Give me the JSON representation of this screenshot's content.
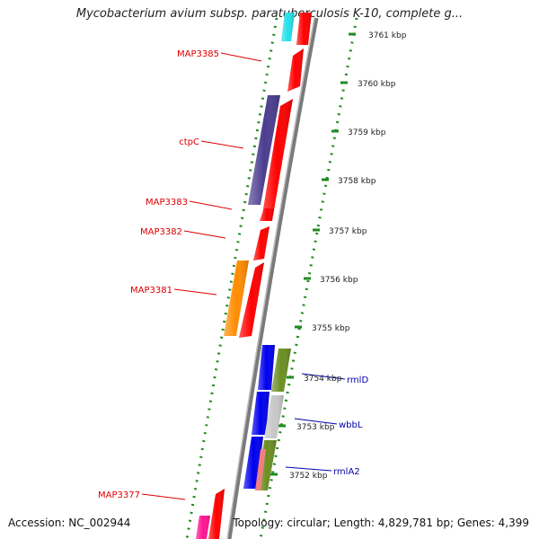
{
  "title": "Mycobacterium avium subsp. paratuberculosis K-10, complete g...",
  "footer": {
    "accession": "Accession: NC_002944",
    "info": "Topology: circular; Length: 4,829,781 bp; Genes: 4,399"
  },
  "colors": {
    "ruler": "#228B22",
    "red_label": "#dd0000",
    "blue_label": "#0000aa",
    "backbone": "#808080"
  },
  "ticks": [
    {
      "label": "3761 kbp"
    },
    {
      "label": "3760 kbp"
    },
    {
      "label": "3759 kbp"
    },
    {
      "label": "3758 kbp"
    },
    {
      "label": "3757 kbp"
    },
    {
      "label": "3756 kbp"
    },
    {
      "label": "3755 kbp"
    },
    {
      "label": "3754 kbp"
    },
    {
      "label": "3753 kbp"
    },
    {
      "label": "3752 kbp"
    }
  ],
  "left_labels": [
    {
      "label": "MAP3385"
    },
    {
      "label": "ctpC"
    },
    {
      "label": "MAP3383"
    },
    {
      "label": "MAP3382"
    },
    {
      "label": "MAP3381"
    },
    {
      "label": "MAP3377"
    }
  ],
  "right_labels": [
    {
      "label": "rmlD"
    },
    {
      "label": "wbbL"
    },
    {
      "label": "rmlA2"
    }
  ],
  "genes": [
    {
      "id": "g-top-cyan",
      "color": "#22e0e8"
    },
    {
      "id": "g-top-red",
      "color": "#ff0000"
    },
    {
      "id": "MAP3385",
      "color": "#ff0000"
    },
    {
      "id": "ctpC",
      "color": "#4b3d8f"
    },
    {
      "id": "g-red-long",
      "color": "#ff0000"
    },
    {
      "id": "MAP3383",
      "color": "#ff0000"
    },
    {
      "id": "MAP3382",
      "color": "#ff0000"
    },
    {
      "id": "MAP3381",
      "color": "#ff8c00"
    },
    {
      "id": "g-red-3381b",
      "color": "#ff0000"
    },
    {
      "id": "g-blue-1",
      "color": "#0000ee"
    },
    {
      "id": "g-blue-2",
      "color": "#0000ee"
    },
    {
      "id": "g-blue-3",
      "color": "#0000ee"
    },
    {
      "id": "rmlD",
      "color": "#6b8e23"
    },
    {
      "id": "wbbL",
      "color": "#c8c8c8"
    },
    {
      "id": "rmlA2",
      "color": "#6b8e23"
    },
    {
      "id": "MAP3377",
      "color": "#ff0000"
    },
    {
      "id": "g-bottom-magenta",
      "color": "#ff1493"
    }
  ]
}
